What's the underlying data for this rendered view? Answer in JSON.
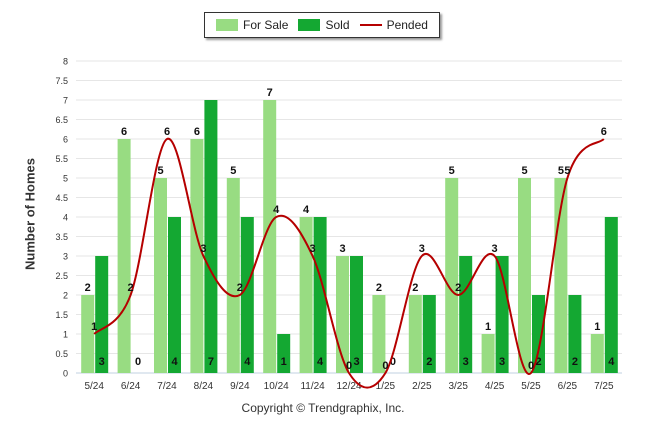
{
  "legend": {
    "for_sale": "For Sale",
    "sold": "Sold",
    "pended": "Pended"
  },
  "credit": "Copyright © Trendgraphix, Inc.",
  "colors": {
    "for_sale": "#98dc82",
    "sold": "#14a832",
    "pended": "#b50000",
    "grid": "#e6e6e6"
  },
  "chart_data": {
    "type": "bar",
    "categories": [
      "5/24",
      "6/24",
      "7/24",
      "8/24",
      "9/24",
      "10/24",
      "11/24",
      "12/24",
      "1/25",
      "2/25",
      "3/25",
      "4/25",
      "5/25",
      "6/25",
      "7/25"
    ],
    "series": [
      {
        "name": "For Sale",
        "type": "bar",
        "values": [
          2,
          6,
          5,
          6,
          5,
          7,
          4,
          3,
          2,
          2,
          5,
          1,
          5,
          5,
          1
        ]
      },
      {
        "name": "Sold",
        "type": "bar",
        "values": [
          3,
          0,
          4,
          7,
          4,
          1,
          4,
          3,
          0,
          2,
          3,
          3,
          2,
          2,
          4
        ]
      },
      {
        "name": "Pended",
        "type": "line",
        "values": [
          1,
          2,
          6,
          3,
          2,
          4,
          3,
          0,
          0,
          3,
          2,
          3,
          0,
          5,
          6
        ]
      }
    ],
    "ylabel": "Number of Homes",
    "xlabel": "",
    "ylim": [
      0,
      8
    ],
    "yticks": [
      "0",
      "0.5",
      "1",
      "1.5",
      "2",
      "2.5",
      "3",
      "3.5",
      "4",
      "4.5",
      "5",
      "5.5",
      "6",
      "6.5",
      "7",
      "7.5",
      "8"
    ],
    "grid": true,
    "legend_position": "top-center"
  }
}
